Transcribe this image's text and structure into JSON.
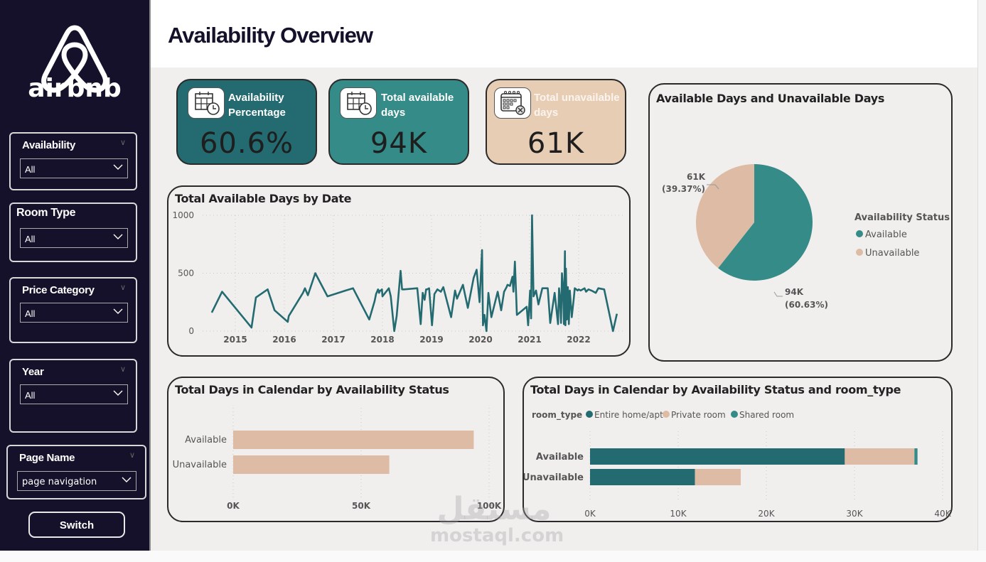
{
  "brand": {
    "name": "airbnb"
  },
  "header": {
    "title": "Availability Overview"
  },
  "sidebar": {
    "slicers": [
      {
        "title": "Availability",
        "value": "All"
      },
      {
        "title": "Room Type",
        "value": "All"
      },
      {
        "title": "Price Category",
        "value": "All"
      },
      {
        "title": "Year",
        "value": "All"
      },
      {
        "title": "Page Name",
        "value": "page navigation"
      }
    ],
    "switch_label": "Switch"
  },
  "kpis": [
    {
      "label_line1": "Availability",
      "label_line2": "Percentage",
      "value": "60.6%",
      "icon": "calendar-clock-icon",
      "color": "#236b70"
    },
    {
      "label_line1": "Total available",
      "label_line2": "days",
      "value": "94K",
      "icon": "calendar-clock-icon",
      "color": "#358b87"
    },
    {
      "label_line1": "Total unavailable",
      "label_line2": "days",
      "value": "61K",
      "icon": "calendar-x-icon",
      "color": "#e8cdb5"
    }
  ],
  "colors": {
    "teal_dark": "#236b70",
    "teal": "#358b87",
    "sand": "#ddbba4",
    "sidebar": "#15112a",
    "canvas": "#f1efee"
  },
  "watermark": {
    "arabic": "مستقل",
    "latin": "mostaql.com"
  },
  "chart_data": [
    {
      "type": "line",
      "title": "Total Available Days by Date",
      "xlabel": "",
      "ylabel": "",
      "ylim": [
        0,
        1000
      ],
      "yticks": [
        "0",
        "500",
        "1000"
      ],
      "xticks": [
        "2015",
        "2016",
        "2017",
        "2018",
        "2019",
        "2020",
        "2021",
        "2022"
      ],
      "grid": true,
      "series": [
        {
          "name": "Total Available Days",
          "color": "#236b70",
          "x": [
            2014.52,
            2014.73,
            2015.33,
            2015.42,
            2015.66,
            2015.8,
            2016.07,
            2016.09,
            2016.38,
            2016.42,
            2016.48,
            2016.63,
            2016.88,
            2017.25,
            2017.4,
            2017.73,
            2017.84,
            2017.87,
            2017.91,
            2017.93,
            2017.95,
            2017.97,
            2017.99,
            2018.0,
            2018.13,
            2018.17,
            2018.24,
            2018.29,
            2018.37,
            2018.4,
            2018.44,
            2018.71,
            2018.78,
            2018.82,
            2018.86,
            2018.89,
            2018.91,
            2018.95,
            2019.01,
            2019.06,
            2019.12,
            2019.19,
            2019.24,
            2019.4,
            2019.48,
            2019.52,
            2019.64,
            2019.74,
            2019.86,
            2019.92,
            2019.98,
            2020.03,
            2020.05,
            2020.08,
            2020.12,
            2020.16,
            2020.22,
            2020.35,
            2020.42,
            2020.48,
            2020.53,
            2020.55,
            2020.6,
            2020.65,
            2020.67,
            2020.7,
            2020.74,
            2020.94,
            2020.97,
            2021.01,
            2021.03,
            2021.05,
            2021.08,
            2021.13,
            2021.18,
            2021.26,
            2021.37,
            2021.42,
            2021.51,
            2021.58,
            2021.6,
            2021.62,
            2021.64,
            2021.66,
            2021.68,
            2021.7,
            2021.72,
            2021.73,
            2021.74,
            2021.76,
            2021.78,
            2021.8,
            2021.82,
            2021.86,
            2021.9,
            2021.92,
            2021.95,
            2021.98,
            2022.0,
            2022.04,
            2022.12,
            2022.15,
            2022.2,
            2022.26,
            2022.35,
            2022.4,
            2022.52,
            2022.7,
            2022.78
          ],
          "values": [
            160,
            340,
            30,
            290,
            360,
            180,
            80,
            130,
            330,
            370,
            310,
            500,
            300,
            350,
            370,
            100,
            260,
            320,
            360,
            330,
            350,
            350,
            360,
            300,
            370,
            300,
            0,
            130,
            520,
            360,
            360,
            370,
            60,
            330,
            270,
            360,
            360,
            370,
            50,
            320,
            360,
            340,
            380,
            120,
            350,
            280,
            400,
            200,
            460,
            530,
            250,
            700,
            50,
            140,
            0,
            330,
            120,
            340,
            180,
            340,
            380,
            400,
            390,
            470,
            340,
            600,
            140,
            210,
            50,
            350,
            110,
            1000,
            300,
            350,
            230,
            370,
            370,
            70,
            330,
            60,
            370,
            280,
            70,
            500,
            380,
            60,
            690,
            50,
            540,
            100,
            380,
            60,
            350,
            120,
            280,
            370,
            360,
            350,
            360,
            350,
            370,
            340,
            360,
            350,
            330,
            370,
            360,
            0,
            150
          ]
        }
      ]
    },
    {
      "type": "pie",
      "title": "Available Days and Unavailable Days",
      "legend_title": "Availability Status",
      "legend_position": "right",
      "categories": [
        "Available",
        "Unavailable"
      ],
      "values": [
        94000,
        61000
      ],
      "percent": [
        60.63,
        39.37
      ],
      "labels": [
        "94K",
        "61K"
      ],
      "percent_labels": [
        "(60.63%)",
        "(39.37%)"
      ],
      "colors": [
        "#358b87",
        "#ddbba4"
      ]
    },
    {
      "type": "bar",
      "orientation": "horizontal",
      "title": "Total Days in Calendar by Availability Status",
      "categories": [
        "Available",
        "Unavailable"
      ],
      "values": [
        94000,
        61000
      ],
      "xlim": [
        0,
        100000
      ],
      "xticks": [
        "0K",
        "50K",
        "100K"
      ],
      "color": "#ddbba4",
      "grid": true
    },
    {
      "type": "bar",
      "orientation": "horizontal",
      "stacked": true,
      "title": "Total Days in Calendar by Availability Status and room_type",
      "legend_title": "room_type",
      "legend_position": "top-left",
      "categories": [
        "Available",
        "Unavailable"
      ],
      "xlim": [
        0,
        40000
      ],
      "xticks": [
        "0K",
        "10K",
        "20K",
        "30K",
        "40K"
      ],
      "series": [
        {
          "name": "Entire home/apt",
          "color": "#236b70",
          "values": [
            28900,
            11900
          ]
        },
        {
          "name": "Private room",
          "color": "#ddbba4",
          "values": [
            7900,
            5200
          ]
        },
        {
          "name": "Shared room",
          "color": "#358b87",
          "values": [
            350,
            0
          ]
        }
      ],
      "grid": true
    }
  ]
}
